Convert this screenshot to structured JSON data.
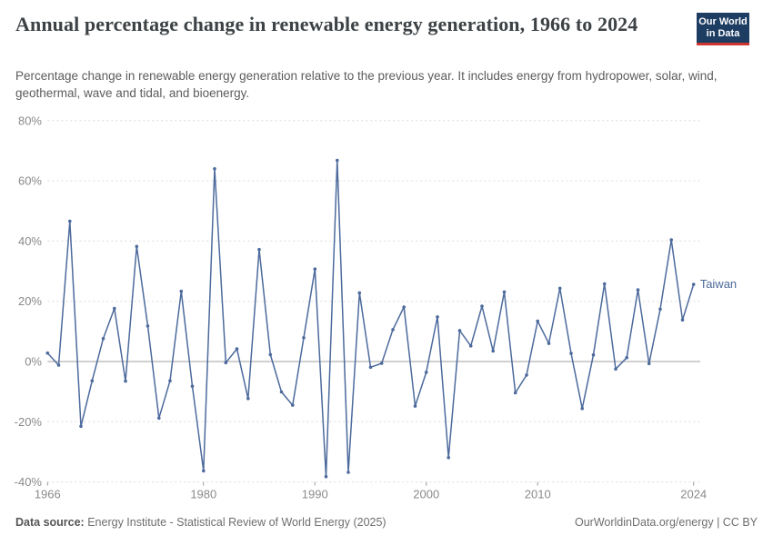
{
  "header": {
    "title": "Annual percentage change in renewable energy generation, 1966 to 2024",
    "subtitle": "Percentage change in renewable energy generation relative to the previous year. It includes energy from hydropower, solar, wind, geothermal, wave and tidal, and bioenergy.",
    "logo": {
      "line1": "Our World",
      "line2": "in Data"
    }
  },
  "chart_data": {
    "type": "line",
    "title": "Annual percentage change in renewable energy generation, 1966 to 2024",
    "xlabel": "",
    "ylabel": "",
    "ylim": [
      -40,
      80
    ],
    "yticks": [
      80,
      60,
      40,
      20,
      0,
      -20,
      -40
    ],
    "ytick_suffix": "%",
    "xticks": [
      1966,
      1980,
      1990,
      2000,
      2010,
      2024
    ],
    "grid": "horizontal-dashed",
    "zero_line": true,
    "legend_position": "end-of-line-label",
    "line_color": "#4C6A9C",
    "series": [
      {
        "name": "Taiwan",
        "x": [
          1966,
          1967,
          1968,
          1969,
          1970,
          1971,
          1972,
          1973,
          1974,
          1975,
          1976,
          1977,
          1978,
          1979,
          1980,
          1981,
          1982,
          1983,
          1984,
          1985,
          1986,
          1987,
          1988,
          1989,
          1990,
          1991,
          1992,
          1993,
          1994,
          1995,
          1996,
          1997,
          1998,
          1999,
          2000,
          2001,
          2002,
          2003,
          2004,
          2005,
          2006,
          2007,
          2008,
          2009,
          2010,
          2011,
          2012,
          2013,
          2014,
          2015,
          2016,
          2017,
          2018,
          2019,
          2020,
          2021,
          2022,
          2023,
          2024
        ],
        "values": [
          2.8,
          -1.2,
          46.6,
          -21.5,
          -6.4,
          7.6,
          17.6,
          -6.5,
          38.2,
          11.8,
          -18.8,
          -6.4,
          23.3,
          -8.2,
          -36.3,
          64,
          -0.4,
          4.2,
          -12.3,
          37.2,
          2.3,
          -10.1,
          -14.5,
          7.9,
          30.7,
          -38.2,
          66.8,
          -36.8,
          22.8,
          -1.9,
          -0.6,
          10.6,
          18.1,
          -14.8,
          -3.6,
          14.8,
          -31.9,
          10.3,
          5.2,
          18.4,
          3.5,
          23.1,
          -10.4,
          -4.5,
          13.4,
          6,
          24.3,
          2.7,
          -15.6,
          2.2,
          25.8,
          -2.5,
          1.3,
          23.8,
          -0.7,
          17.4,
          40.4,
          13.8,
          25.6
        ]
      }
    ]
  },
  "footer": {
    "datasource_label": "Data source:",
    "datasource_value": " Energy Institute - Statistical Review of World Energy (2025)",
    "right_text": "OurWorldinData.org/energy | CC BY"
  },
  "colors": {
    "line": "#4C6A9C",
    "grid": "#dcdcdc",
    "zero_line": "#a0a0a0",
    "tick_label": "#8a8a8a",
    "logo_bg": "#1d3d63",
    "logo_bar": "#cf3630"
  }
}
